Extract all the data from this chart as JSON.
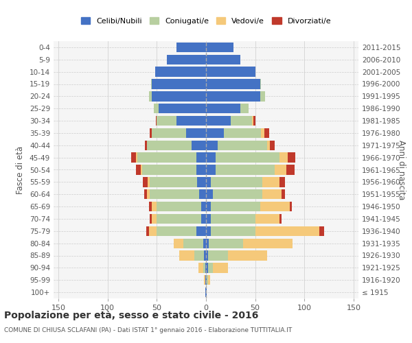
{
  "age_groups": [
    "100+",
    "95-99",
    "90-94",
    "85-89",
    "80-84",
    "75-79",
    "70-74",
    "65-69",
    "60-64",
    "55-59",
    "50-54",
    "45-49",
    "40-44",
    "35-39",
    "30-34",
    "25-29",
    "20-24",
    "15-19",
    "10-14",
    "5-9",
    "0-4"
  ],
  "birth_years": [
    "≤ 1915",
    "1916-1920",
    "1921-1925",
    "1926-1930",
    "1931-1935",
    "1936-1940",
    "1941-1945",
    "1946-1950",
    "1951-1955",
    "1956-1960",
    "1961-1965",
    "1966-1970",
    "1971-1975",
    "1976-1980",
    "1981-1985",
    "1986-1990",
    "1991-1995",
    "1996-2000",
    "2001-2005",
    "2006-2010",
    "2011-2015"
  ],
  "maschi": {
    "celibi": [
      1,
      1,
      1,
      2,
      3,
      10,
      5,
      5,
      7,
      9,
      10,
      10,
      15,
      20,
      30,
      48,
      55,
      55,
      52,
      40,
      30
    ],
    "coniugati": [
      0,
      0,
      2,
      10,
      20,
      40,
      45,
      45,
      50,
      48,
      55,
      60,
      45,
      35,
      20,
      5,
      3,
      1,
      0,
      0,
      0
    ],
    "vedovi": [
      0,
      1,
      5,
      15,
      10,
      8,
      5,
      5,
      3,
      2,
      1,
      1,
      0,
      0,
      0,
      0,
      0,
      0,
      0,
      0,
      0
    ],
    "divorziati": [
      0,
      0,
      0,
      0,
      0,
      3,
      2,
      3,
      3,
      5,
      5,
      5,
      2,
      2,
      1,
      0,
      0,
      0,
      0,
      0,
      0
    ]
  },
  "femmine": {
    "nubili": [
      1,
      1,
      2,
      2,
      3,
      5,
      5,
      5,
      7,
      5,
      10,
      10,
      12,
      18,
      25,
      35,
      55,
      55,
      50,
      35,
      28
    ],
    "coniugate": [
      0,
      1,
      5,
      20,
      35,
      45,
      45,
      50,
      50,
      52,
      60,
      65,
      50,
      38,
      22,
      8,
      5,
      1,
      0,
      0,
      0
    ],
    "vedove": [
      0,
      2,
      15,
      40,
      50,
      65,
      25,
      30,
      20,
      18,
      12,
      8,
      3,
      3,
      1,
      0,
      0,
      0,
      0,
      0,
      0
    ],
    "divorziate": [
      0,
      0,
      0,
      0,
      0,
      5,
      2,
      2,
      3,
      5,
      8,
      8,
      5,
      5,
      2,
      0,
      0,
      0,
      0,
      0,
      0
    ]
  },
  "colors": {
    "celibi": "#4472C4",
    "coniugati": "#b8cfa0",
    "vedovi": "#f5c97a",
    "divorziati": "#c0392b"
  },
  "xlim": 155,
  "title": "Popolazione per età, sesso e stato civile - 2016",
  "subtitle": "COMUNE DI CHIUSA SCLAFANI (PA) - Dati ISTAT 1° gennaio 2016 - Elaborazione TUTTITALIA.IT",
  "ylabel_left": "Fasce di età",
  "ylabel_right": "Anni di nascita",
  "bar_height": 0.8,
  "bg_color": "#f5f5f5",
  "grid_color": "#cccccc"
}
